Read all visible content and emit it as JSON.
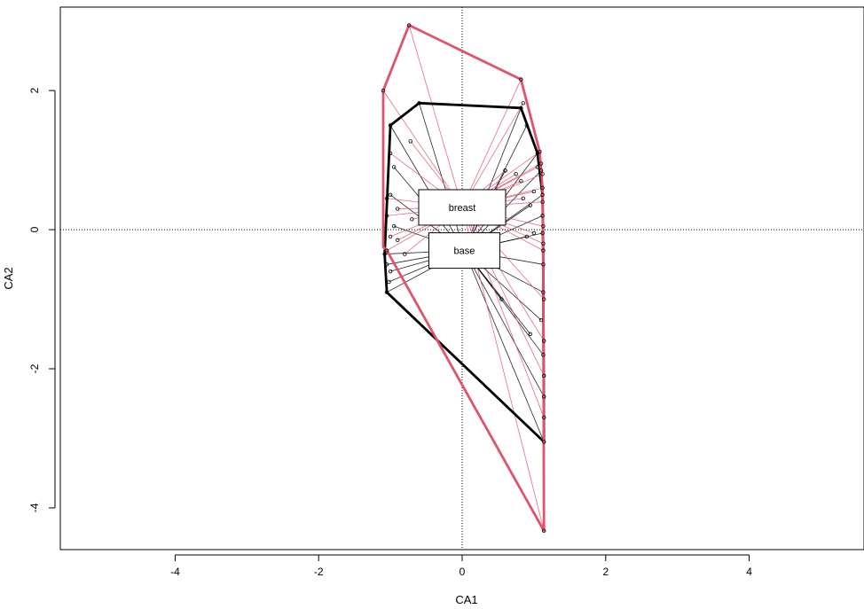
{
  "chart_data": {
    "type": "scatter",
    "xlabel": "CA1",
    "ylabel": "CA2",
    "xlim": [
      -5.6,
      5.6
    ],
    "ylim": [
      -4.6,
      3.2
    ],
    "xticks": [
      -4,
      -2,
      0,
      2,
      4
    ],
    "yticks": [
      -4,
      -2,
      0,
      2
    ],
    "reference_lines": {
      "x": 0,
      "y": 0,
      "style": "dotted"
    },
    "colors": {
      "breast": "#df536b",
      "base": "#000000"
    },
    "series": [
      {
        "name": "breast",
        "color": "#df536b",
        "centroid": [
          0.0,
          0.32
        ],
        "hull": [
          [
            -0.74,
            2.94
          ],
          [
            0.82,
            2.16
          ],
          [
            1.08,
            1.12
          ],
          [
            1.12,
            0.6
          ],
          [
            1.13,
            -0.3
          ],
          [
            1.14,
            -4.33
          ],
          [
            -1.05,
            -0.3
          ],
          [
            -1.1,
            -0.25
          ],
          [
            -1.1,
            2.0
          ]
        ],
        "points": [
          [
            -0.74,
            2.94
          ],
          [
            0.82,
            2.16
          ],
          [
            -1.1,
            2.0
          ],
          [
            0.85,
            1.82
          ],
          [
            -0.72,
            1.27
          ],
          [
            -1.0,
            1.1
          ],
          [
            1.08,
            1.12
          ],
          [
            1.1,
            0.95
          ],
          [
            1.05,
            0.9
          ],
          [
            0.6,
            0.85
          ],
          [
            0.75,
            0.8
          ],
          [
            1.12,
            0.8
          ],
          [
            0.82,
            0.7
          ],
          [
            1.12,
            0.6
          ],
          [
            1.0,
            0.55
          ],
          [
            0.85,
            0.45
          ],
          [
            1.12,
            0.4
          ],
          [
            -1.05,
            0.45
          ],
          [
            -0.9,
            0.3
          ],
          [
            -1.05,
            0.2
          ],
          [
            -0.7,
            0.15
          ],
          [
            1.13,
            0.05
          ],
          [
            1.0,
            -0.05
          ],
          [
            -1.0,
            -0.1
          ],
          [
            -0.9,
            -0.15
          ],
          [
            1.13,
            -0.2
          ],
          [
            1.13,
            -0.3
          ],
          [
            -1.05,
            -0.3
          ],
          [
            -0.8,
            -0.35
          ],
          [
            1.14,
            -1.0
          ],
          [
            1.14,
            -1.6
          ],
          [
            1.14,
            -2.1
          ],
          [
            1.14,
            -2.7
          ],
          [
            1.14,
            -4.33
          ]
        ]
      },
      {
        "name": "base",
        "color": "#000000",
        "centroid": [
          0.03,
          -0.3
        ],
        "hull": [
          [
            -0.6,
            1.82
          ],
          [
            0.82,
            1.75
          ],
          [
            1.05,
            1.1
          ],
          [
            1.12,
            0.5
          ],
          [
            1.13,
            -0.5
          ],
          [
            1.14,
            -3.05
          ],
          [
            -1.05,
            -0.9
          ],
          [
            -1.08,
            -0.35
          ],
          [
            -1.0,
            1.5
          ]
        ],
        "points": [
          [
            -0.6,
            1.82
          ],
          [
            0.82,
            1.75
          ],
          [
            -1.0,
            1.5
          ],
          [
            0.9,
            1.5
          ],
          [
            1.05,
            1.1
          ],
          [
            -0.95,
            0.9
          ],
          [
            1.1,
            0.85
          ],
          [
            0.6,
            0.85
          ],
          [
            1.12,
            0.5
          ],
          [
            -1.0,
            0.5
          ],
          [
            0.95,
            0.35
          ],
          [
            1.12,
            0.2
          ],
          [
            -0.95,
            0.05
          ],
          [
            1.12,
            -0.05
          ],
          [
            0.9,
            -0.1
          ],
          [
            -1.08,
            -0.35
          ],
          [
            1.13,
            -0.5
          ],
          [
            -1.05,
            -0.5
          ],
          [
            -1.0,
            -0.6
          ],
          [
            -1.02,
            -0.75
          ],
          [
            1.13,
            -0.9
          ],
          [
            0.55,
            -1.0
          ],
          [
            1.1,
            -1.3
          ],
          [
            0.95,
            -1.5
          ],
          [
            1.13,
            -1.8
          ],
          [
            1.14,
            -2.4
          ],
          [
            -1.05,
            -0.9
          ],
          [
            1.14,
            -3.05
          ]
        ]
      }
    ]
  }
}
